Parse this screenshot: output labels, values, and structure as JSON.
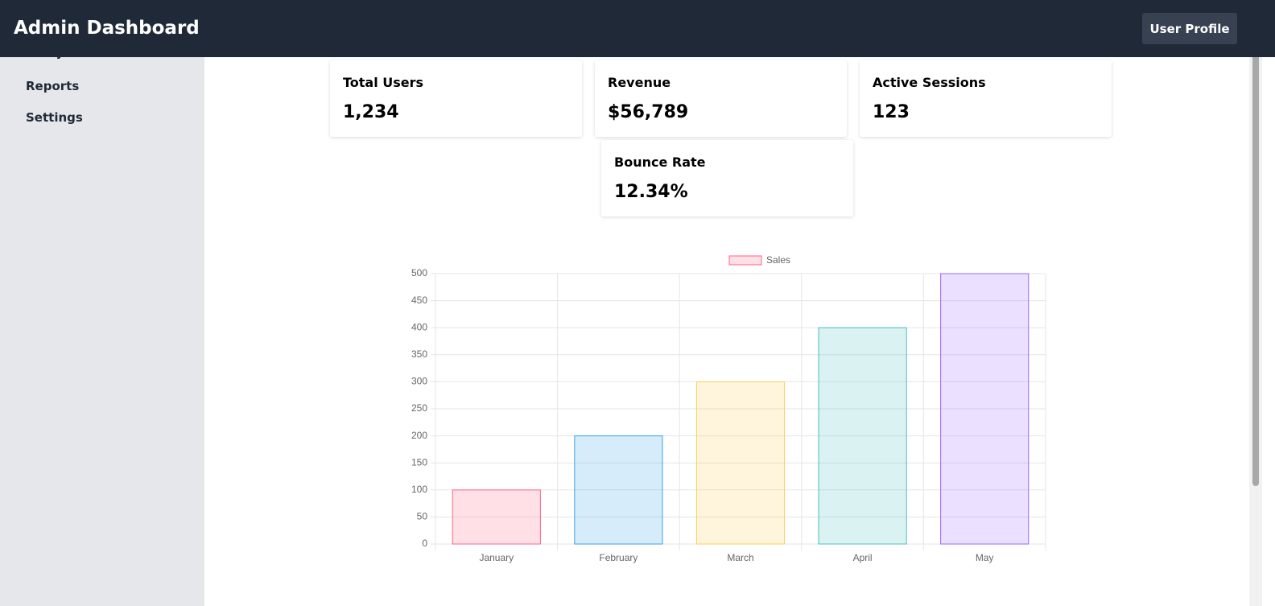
{
  "header": {
    "title": "Admin Dashboard",
    "button": "User Profile"
  },
  "sidebar": {
    "items": [
      "Analytics",
      "Reports",
      "Settings"
    ]
  },
  "cards": [
    {
      "title": "Total Users",
      "value": "1,234"
    },
    {
      "title": "Revenue",
      "value": "$56,789"
    },
    {
      "title": "Active Sessions",
      "value": "123"
    },
    {
      "title": "Bounce Rate",
      "value": "12.34%"
    }
  ],
  "chart_data": {
    "type": "bar",
    "categories": [
      "January",
      "February",
      "March",
      "April",
      "May"
    ],
    "series": [
      {
        "name": "Sales",
        "color": "rgba(255,99,132,0.2)",
        "border_color": "rgb(255,99,132)",
        "values": [
          100,
          200,
          300,
          400,
          500
        ],
        "colors": [
          "rgba(255,99,132,0.2)",
          "rgba(54,162,235,0.2)",
          "rgba(255,206,86,0.2)",
          "rgba(75,192,192,0.2)",
          "rgba(153,102,255,0.2)"
        ],
        "border_colors": [
          "rgb(255,99,132)",
          "rgb(54,162,235)",
          "rgb(255,206,86)",
          "rgb(75,192,192)",
          "rgb(153,102,255)"
        ]
      }
    ],
    "ylim": [
      0,
      500
    ],
    "yticks": [
      0,
      50,
      100,
      150,
      200,
      250,
      300,
      350,
      400,
      450,
      500
    ],
    "grid": true,
    "legend": "top"
  }
}
